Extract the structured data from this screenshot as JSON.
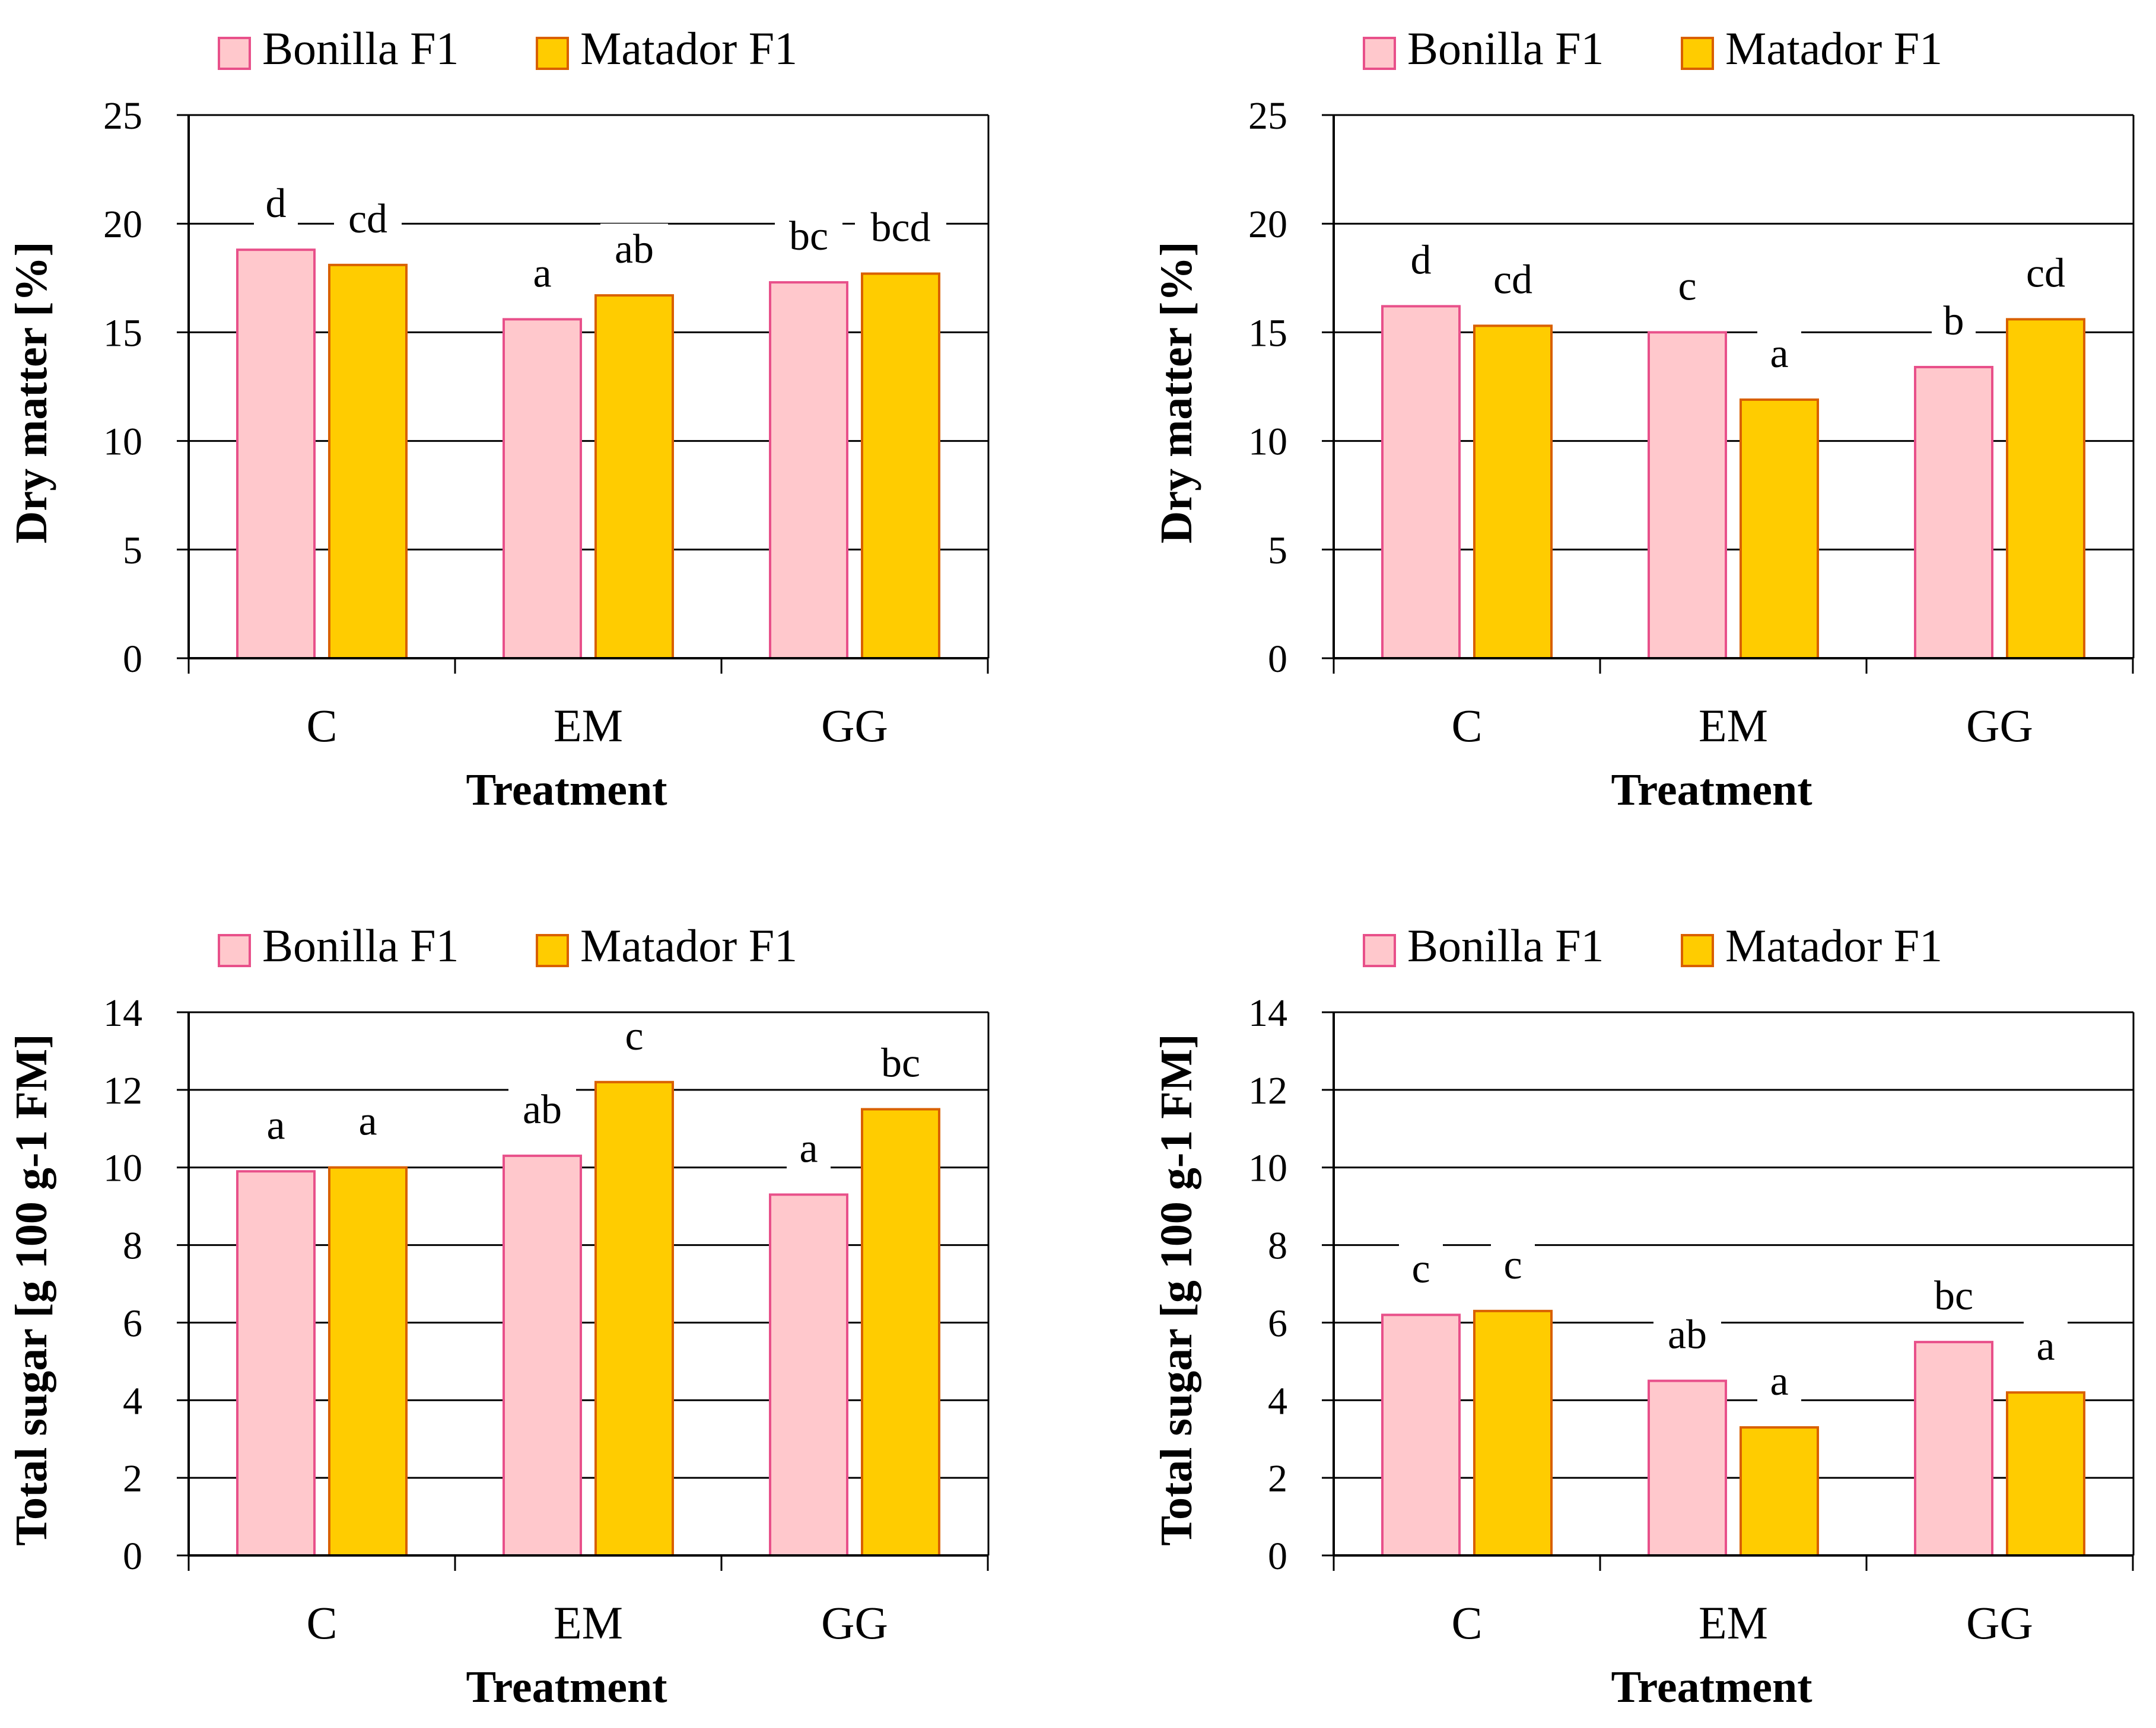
{
  "colors": {
    "bonilla_fill": "#ffc8cc",
    "bonilla_stroke": "#e8508a",
    "matador_fill": "#ffcc00",
    "matador_stroke": "#d96000"
  },
  "chart_data": [
    {
      "type": "bar",
      "categories": [
        "C",
        "EM",
        "GG"
      ],
      "series": [
        {
          "name": "Bonilla F1",
          "values": [
            18.8,
            15.6,
            17.3
          ],
          "letters": [
            "d",
            "a",
            "bc"
          ]
        },
        {
          "name": "Matador F1",
          "values": [
            18.1,
            16.7,
            17.7
          ],
          "letters": [
            "cd",
            "ab",
            "bcd"
          ]
        }
      ],
      "xlabel": "Treatment",
      "ylabel": "Dry matter [%]",
      "ylim": [
        0,
        25
      ],
      "yticks": [
        0,
        5,
        10,
        15,
        20,
        25
      ],
      "legend": "top",
      "grid": true
    },
    {
      "type": "bar",
      "categories": [
        "C",
        "EM",
        "GG"
      ],
      "series": [
        {
          "name": "Bonilla F1",
          "values": [
            16.2,
            15.0,
            13.4
          ],
          "letters": [
            "d",
            "c",
            "b"
          ]
        },
        {
          "name": "Matador F1",
          "values": [
            15.3,
            11.9,
            15.6
          ],
          "letters": [
            "cd",
            "a",
            "cd"
          ]
        }
      ],
      "xlabel": "Treatment",
      "ylabel": "Dry matter [%]",
      "ylim": [
        0,
        25
      ],
      "yticks": [
        0,
        5,
        10,
        15,
        20,
        25
      ],
      "legend": "top",
      "grid": true
    },
    {
      "type": "bar",
      "categories": [
        "C",
        "EM",
        "GG"
      ],
      "series": [
        {
          "name": "Bonilla F1",
          "values": [
            9.9,
            10.3,
            9.3
          ],
          "letters": [
            "a",
            "ab",
            "a"
          ]
        },
        {
          "name": "Matador F1",
          "values": [
            10.0,
            12.2,
            11.5
          ],
          "letters": [
            "a",
            "c",
            "bc"
          ]
        }
      ],
      "xlabel": "Treatment",
      "ylabel": "Total sugar [g 100 g-1 FM]",
      "ylim": [
        0,
        14
      ],
      "yticks": [
        0,
        2,
        4,
        6,
        8,
        10,
        12,
        14
      ],
      "legend": "top",
      "grid": true
    },
    {
      "type": "bar",
      "categories": [
        "C",
        "EM",
        "GG"
      ],
      "series": [
        {
          "name": "Bonilla F1",
          "values": [
            6.2,
            4.5,
            5.5
          ],
          "letters": [
            "c",
            "ab",
            "bc"
          ]
        },
        {
          "name": "Matador F1",
          "values": [
            6.3,
            3.3,
            4.2
          ],
          "letters": [
            "c",
            "a",
            "a"
          ]
        }
      ],
      "xlabel": "Treatment",
      "ylabel": "Total sugar [g 100 g-1 FM]",
      "ylim": [
        0,
        14
      ],
      "yticks": [
        0,
        2,
        4,
        6,
        8,
        10,
        12,
        14
      ],
      "legend": "top",
      "grid": true
    }
  ]
}
